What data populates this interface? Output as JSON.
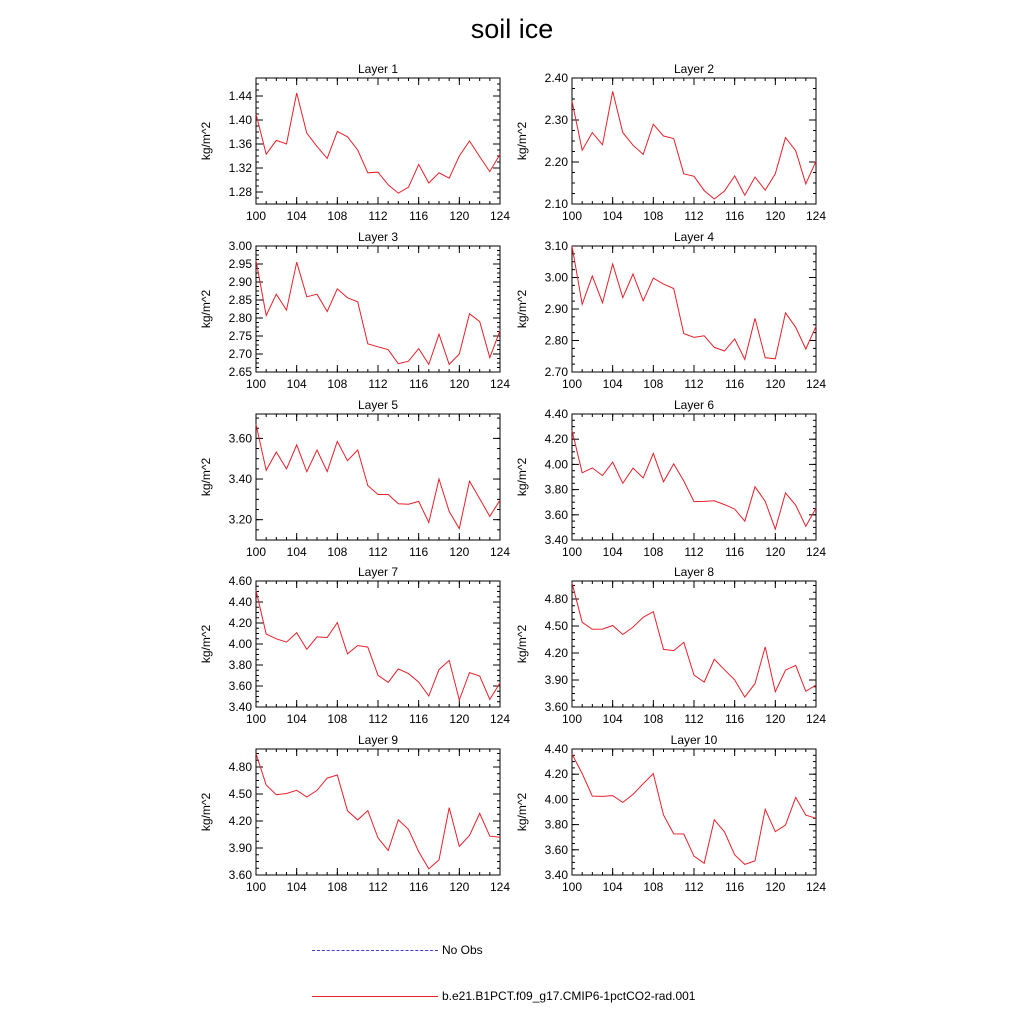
{
  "title": "soil ice",
  "legend": [
    {
      "label": "No Obs",
      "color": "#3b3bd6",
      "style": "dashed"
    },
    {
      "label": "b.e21.B1PCT.f09_g17.CMIP6-1pctCO2-rad.001",
      "color": "#e8202a",
      "style": "solid"
    }
  ],
  "chart_data": [
    {
      "type": "line",
      "title": "Layer 1",
      "ylabel": "kg/m^2",
      "x": [
        100,
        101,
        102,
        103,
        104,
        105,
        106,
        107,
        108,
        109,
        110,
        111,
        112,
        113,
        114,
        115,
        116,
        117,
        118,
        119,
        120,
        121,
        122,
        123,
        124
      ],
      "xlim": [
        100,
        124
      ],
      "xticks": [
        "100",
        "104",
        "108",
        "112",
        "116",
        "120",
        "124"
      ],
      "ylim": [
        1.26,
        1.47
      ],
      "yticks": [
        "1.28",
        "1.32",
        "1.36",
        "1.40",
        "1.44"
      ],
      "series": [
        {
          "color": "#e8202a",
          "values": [
            1.41,
            1.343,
            1.366,
            1.36,
            1.445,
            1.378,
            1.356,
            1.336,
            1.381,
            1.372,
            1.35,
            1.312,
            1.313,
            1.292,
            1.278,
            1.288,
            1.326,
            1.295,
            1.312,
            1.303,
            1.34,
            1.365,
            1.339,
            1.314,
            1.343
          ]
        }
      ]
    },
    {
      "type": "line",
      "title": "Layer 2",
      "ylabel": "kg/m^2",
      "x": [
        100,
        101,
        102,
        103,
        104,
        105,
        106,
        107,
        108,
        109,
        110,
        111,
        112,
        113,
        114,
        115,
        116,
        117,
        118,
        119,
        120,
        121,
        122,
        123,
        124
      ],
      "xlim": [
        100,
        124
      ],
      "xticks": [
        "100",
        "104",
        "108",
        "112",
        "116",
        "120",
        "124"
      ],
      "ylim": [
        2.1,
        2.4
      ],
      "yticks": [
        "2.10",
        "2.20",
        "2.30",
        "2.40"
      ],
      "series": [
        {
          "color": "#e8202a",
          "values": [
            2.345,
            2.228,
            2.27,
            2.241,
            2.368,
            2.27,
            2.24,
            2.218,
            2.29,
            2.262,
            2.256,
            2.172,
            2.166,
            2.132,
            2.112,
            2.131,
            2.167,
            2.121,
            2.164,
            2.133,
            2.172,
            2.258,
            2.227,
            2.148,
            2.202
          ]
        }
      ]
    },
    {
      "type": "line",
      "title": "Layer 3",
      "ylabel": "kg/m^2",
      "x": [
        100,
        101,
        102,
        103,
        104,
        105,
        106,
        107,
        108,
        109,
        110,
        111,
        112,
        113,
        114,
        115,
        116,
        117,
        118,
        119,
        120,
        121,
        122,
        123,
        124
      ],
      "xlim": [
        100,
        124
      ],
      "xticks": [
        "100",
        "104",
        "108",
        "112",
        "116",
        "120",
        "124"
      ],
      "ylim": [
        2.65,
        3.0
      ],
      "yticks": [
        "2.65",
        "2.70",
        "2.75",
        "2.80",
        "2.85",
        "2.90",
        "2.95",
        "3.00"
      ],
      "series": [
        {
          "color": "#e8202a",
          "values": [
            2.96,
            2.807,
            2.866,
            2.822,
            2.955,
            2.859,
            2.866,
            2.818,
            2.881,
            2.856,
            2.845,
            2.728,
            2.72,
            2.712,
            2.673,
            2.68,
            2.715,
            2.671,
            2.755,
            2.671,
            2.7,
            2.812,
            2.79,
            2.69,
            2.765
          ]
        }
      ]
    },
    {
      "type": "line",
      "title": "Layer 4",
      "ylabel": "kg/m^2",
      "x": [
        100,
        101,
        102,
        103,
        104,
        105,
        106,
        107,
        108,
        109,
        110,
        111,
        112,
        113,
        114,
        115,
        116,
        117,
        118,
        119,
        120,
        121,
        122,
        123,
        124
      ],
      "xlim": [
        100,
        124
      ],
      "xticks": [
        "100",
        "104",
        "108",
        "112",
        "116",
        "120",
        "124"
      ],
      "ylim": [
        2.7,
        3.1
      ],
      "yticks": [
        "2.70",
        "2.80",
        "2.90",
        "3.00",
        "3.10"
      ],
      "series": [
        {
          "color": "#e8202a",
          "values": [
            3.1,
            2.915,
            3.005,
            2.92,
            3.043,
            2.936,
            3.011,
            2.926,
            2.998,
            2.979,
            2.965,
            2.822,
            2.81,
            2.815,
            2.778,
            2.767,
            2.805,
            2.74,
            2.87,
            2.745,
            2.742,
            2.888,
            2.842,
            2.773,
            2.845
          ]
        }
      ]
    },
    {
      "type": "line",
      "title": "Layer 5",
      "ylabel": "kg/m^2",
      "x": [
        100,
        101,
        102,
        103,
        104,
        105,
        106,
        107,
        108,
        109,
        110,
        111,
        112,
        113,
        114,
        115,
        116,
        117,
        118,
        119,
        120,
        121,
        122,
        123,
        124
      ],
      "xlim": [
        100,
        124
      ],
      "xticks": [
        "100",
        "104",
        "108",
        "112",
        "116",
        "120",
        "124"
      ],
      "ylim": [
        3.1,
        3.72
      ],
      "yticks": [
        "3.20",
        "3.40",
        "3.60"
      ],
      "series": [
        {
          "color": "#e8202a",
          "values": [
            3.67,
            3.443,
            3.533,
            3.45,
            3.568,
            3.436,
            3.543,
            3.437,
            3.585,
            3.49,
            3.543,
            3.368,
            3.324,
            3.324,
            3.278,
            3.276,
            3.29,
            3.186,
            3.4,
            3.24,
            3.156,
            3.39,
            3.303,
            3.216,
            3.296
          ]
        }
      ]
    },
    {
      "type": "line",
      "title": "Layer 6",
      "ylabel": "kg/m^2",
      "x": [
        100,
        101,
        102,
        103,
        104,
        105,
        106,
        107,
        108,
        109,
        110,
        111,
        112,
        113,
        114,
        115,
        116,
        117,
        118,
        119,
        120,
        121,
        122,
        123,
        124
      ],
      "xlim": [
        100,
        124
      ],
      "xticks": [
        "100",
        "104",
        "108",
        "112",
        "116",
        "120",
        "124"
      ],
      "ylim": [
        3.4,
        4.4
      ],
      "yticks": [
        "3.40",
        "3.60",
        "3.80",
        "4.00",
        "4.20",
        "4.40"
      ],
      "series": [
        {
          "color": "#e8202a",
          "values": [
            4.27,
            3.933,
            3.972,
            3.911,
            4.018,
            3.85,
            3.971,
            3.893,
            4.087,
            3.862,
            4.004,
            3.868,
            3.705,
            3.706,
            3.711,
            3.681,
            3.645,
            3.549,
            3.822,
            3.707,
            3.486,
            3.774,
            3.676,
            3.509,
            3.653
          ]
        }
      ]
    },
    {
      "type": "line",
      "title": "Layer 7",
      "ylabel": "kg/m^2",
      "x": [
        100,
        101,
        102,
        103,
        104,
        105,
        106,
        107,
        108,
        109,
        110,
        111,
        112,
        113,
        114,
        115,
        116,
        117,
        118,
        119,
        120,
        121,
        122,
        123,
        124
      ],
      "xlim": [
        100,
        124
      ],
      "xticks": [
        "100",
        "104",
        "108",
        "112",
        "116",
        "120",
        "124"
      ],
      "ylim": [
        3.4,
        4.6
      ],
      "yticks": [
        "3.40",
        "3.60",
        "3.80",
        "4.00",
        "4.20",
        "4.40",
        "4.60"
      ],
      "series": [
        {
          "color": "#e8202a",
          "values": [
            4.51,
            4.094,
            4.05,
            4.018,
            4.108,
            3.95,
            4.068,
            4.062,
            4.204,
            3.906,
            3.986,
            3.97,
            3.702,
            3.634,
            3.763,
            3.718,
            3.637,
            3.505,
            3.756,
            3.844,
            3.467,
            3.728,
            3.695,
            3.472,
            3.63
          ]
        }
      ]
    },
    {
      "type": "line",
      "title": "Layer 8",
      "ylabel": "kg/m^2",
      "x": [
        100,
        101,
        102,
        103,
        104,
        105,
        106,
        107,
        108,
        109,
        110,
        111,
        112,
        113,
        114,
        115,
        116,
        117,
        118,
        119,
        120,
        121,
        122,
        123,
        124
      ],
      "xlim": [
        100,
        124
      ],
      "xticks": [
        "100",
        "104",
        "108",
        "112",
        "116",
        "120",
        "124"
      ],
      "ylim": [
        3.6,
        5.0
      ],
      "yticks": [
        "3.60",
        "3.90",
        "4.20",
        "4.50",
        "4.80"
      ],
      "series": [
        {
          "color": "#e8202a",
          "values": [
            4.98,
            4.541,
            4.463,
            4.465,
            4.505,
            4.405,
            4.488,
            4.597,
            4.66,
            4.24,
            4.227,
            4.318,
            3.956,
            3.877,
            4.13,
            4.013,
            3.901,
            3.71,
            3.86,
            4.268,
            3.77,
            4.01,
            4.062,
            3.775,
            3.845
          ]
        }
      ]
    },
    {
      "type": "line",
      "title": "Layer 9",
      "ylabel": "kg/m^2",
      "x": [
        100,
        101,
        102,
        103,
        104,
        105,
        106,
        107,
        108,
        109,
        110,
        111,
        112,
        113,
        114,
        115,
        116,
        117,
        118,
        119,
        120,
        121,
        122,
        123,
        124
      ],
      "xlim": [
        100,
        124
      ],
      "xticks": [
        "100",
        "104",
        "108",
        "112",
        "116",
        "120",
        "124"
      ],
      "ylim": [
        3.6,
        5.0
      ],
      "yticks": [
        "3.60",
        "3.90",
        "4.20",
        "4.50",
        "4.80"
      ],
      "series": [
        {
          "color": "#e8202a",
          "values": [
            4.95,
            4.6,
            4.492,
            4.505,
            4.541,
            4.467,
            4.54,
            4.677,
            4.711,
            4.313,
            4.212,
            4.316,
            4.012,
            3.872,
            4.213,
            4.107,
            3.86,
            3.668,
            3.768,
            4.349,
            3.918,
            4.039,
            4.285,
            4.031,
            4.02
          ]
        }
      ]
    },
    {
      "type": "line",
      "title": "Layer 10",
      "ylabel": "kg/m^2",
      "x": [
        100,
        101,
        102,
        103,
        104,
        105,
        106,
        107,
        108,
        109,
        110,
        111,
        112,
        113,
        114,
        115,
        116,
        117,
        118,
        119,
        120,
        121,
        122,
        123,
        124
      ],
      "xlim": [
        100,
        124
      ],
      "xticks": [
        "100",
        "104",
        "108",
        "112",
        "116",
        "120",
        "124"
      ],
      "ylim": [
        3.4,
        4.4
      ],
      "yticks": [
        "3.40",
        "3.60",
        "3.80",
        "4.00",
        "4.20",
        "4.40"
      ],
      "series": [
        {
          "color": "#e8202a",
          "values": [
            4.36,
            4.205,
            4.026,
            4.024,
            4.03,
            3.976,
            4.04,
            4.125,
            4.205,
            3.876,
            3.726,
            3.725,
            3.549,
            3.493,
            3.838,
            3.742,
            3.56,
            3.484,
            3.512,
            3.922,
            3.744,
            3.796,
            4.016,
            3.875,
            3.85
          ]
        }
      ]
    }
  ]
}
